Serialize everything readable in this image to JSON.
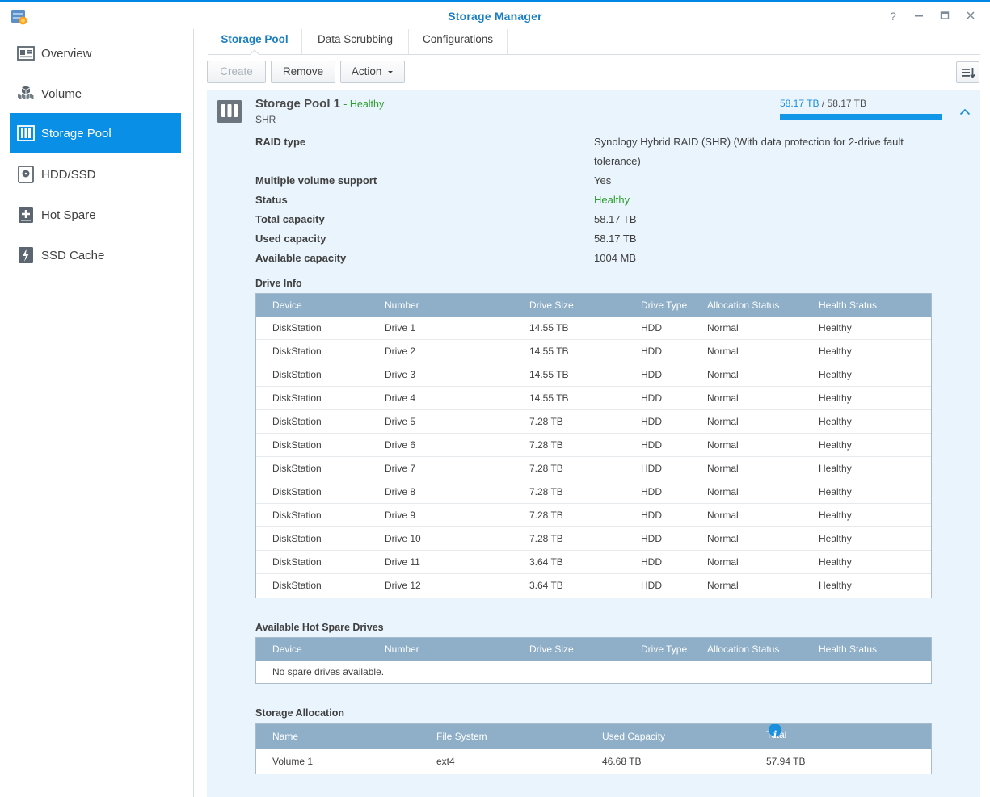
{
  "window": {
    "title": "Storage Manager",
    "help_icon": "question-icon",
    "minimize_icon": "minimize-icon",
    "maximize_icon": "maximize-icon",
    "close_icon": "close-icon"
  },
  "sidebar": {
    "items": [
      {
        "label": "Overview",
        "icon": "overview-icon"
      },
      {
        "label": "Volume",
        "icon": "volume-icon"
      },
      {
        "label": "Storage Pool",
        "icon": "storage-pool-icon",
        "active": true
      },
      {
        "label": "HDD/SSD",
        "icon": "hdd-icon"
      },
      {
        "label": "Hot Spare",
        "icon": "hot-spare-icon"
      },
      {
        "label": "SSD Cache",
        "icon": "ssd-cache-icon"
      }
    ]
  },
  "tabs": [
    {
      "label": "Storage Pool",
      "active": true
    },
    {
      "label": "Data Scrubbing"
    },
    {
      "label": "Configurations"
    }
  ],
  "toolbar": {
    "create_label": "Create",
    "remove_label": "Remove",
    "action_label": "Action",
    "sort_icon": "sort-icon"
  },
  "pool": {
    "name": "Storage Pool 1",
    "status_suffix": "- Healthy",
    "type": "SHR",
    "used": "58.17 TB",
    "separator": "/",
    "total": "58.17 TB",
    "usage_fraction": 1.0,
    "properties": [
      {
        "label": "RAID type",
        "value": "Synology Hybrid RAID (SHR) (With data protection for 2-drive fault tolerance)"
      },
      {
        "label": "Multiple volume support",
        "value": "Yes"
      },
      {
        "label": "Status",
        "value": "Healthy",
        "status": true
      },
      {
        "label": "Total capacity",
        "value": "58.17 TB"
      },
      {
        "label": "Used capacity",
        "value": "58.17 TB"
      },
      {
        "label": "Available capacity",
        "value": "1004 MB"
      }
    ]
  },
  "drive_info": {
    "title": "Drive Info",
    "columns": [
      "Device",
      "Number",
      "Drive Size",
      "Drive Type",
      "Allocation Status",
      "Health Status"
    ],
    "rows": [
      [
        "DiskStation",
        "Drive 1",
        "14.55 TB",
        "HDD",
        "Normal",
        "Healthy"
      ],
      [
        "DiskStation",
        "Drive 2",
        "14.55 TB",
        "HDD",
        "Normal",
        "Healthy"
      ],
      [
        "DiskStation",
        "Drive 3",
        "14.55 TB",
        "HDD",
        "Normal",
        "Healthy"
      ],
      [
        "DiskStation",
        "Drive 4",
        "14.55 TB",
        "HDD",
        "Normal",
        "Healthy"
      ],
      [
        "DiskStation",
        "Drive 5",
        "7.28 TB",
        "HDD",
        "Normal",
        "Healthy"
      ],
      [
        "DiskStation",
        "Drive 6",
        "7.28 TB",
        "HDD",
        "Normal",
        "Healthy"
      ],
      [
        "DiskStation",
        "Drive 7",
        "7.28 TB",
        "HDD",
        "Normal",
        "Healthy"
      ],
      [
        "DiskStation",
        "Drive 8",
        "7.28 TB",
        "HDD",
        "Normal",
        "Healthy"
      ],
      [
        "DiskStation",
        "Drive 9",
        "7.28 TB",
        "HDD",
        "Normal",
        "Healthy"
      ],
      [
        "DiskStation",
        "Drive 10",
        "7.28 TB",
        "HDD",
        "Normal",
        "Healthy"
      ],
      [
        "DiskStation",
        "Drive 11",
        "3.64 TB",
        "HDD",
        "Normal",
        "Healthy"
      ],
      [
        "DiskStation",
        "Drive 12",
        "3.64 TB",
        "HDD",
        "Normal",
        "Healthy"
      ]
    ]
  },
  "hot_spare": {
    "title": "Available Hot Spare Drives",
    "columns": [
      "Device",
      "Number",
      "Drive Size",
      "Drive Type",
      "Allocation Status",
      "Health Status"
    ],
    "empty_text": "No spare drives available."
  },
  "storage_allocation": {
    "title": "Storage Allocation",
    "columns": [
      "Name",
      "File System",
      "Used Capacity",
      "Total Capacity"
    ],
    "info_icon": "info-icon",
    "rows": [
      [
        "Volume 1",
        "ext4",
        "46.68 TB",
        "57.94 TB"
      ]
    ]
  },
  "colors": {
    "accent": "#0a8fe6",
    "healthy": "#2e9e2e",
    "grid_header": "#8eafc7",
    "panel_bg": "#e9f4fc"
  }
}
